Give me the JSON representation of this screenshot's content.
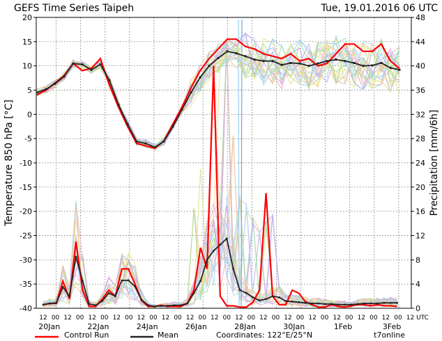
{
  "header": {
    "title": "GEFS Time Series Taipeh",
    "timestamp": "Tue, 19.01.2016 06 UTC"
  },
  "footer": {
    "control_label": "Control Run",
    "mean_label": "Mean",
    "coordinates": "Coordinates: 122°E/25°N",
    "brand": "t7online"
  },
  "colors": {
    "control": "#ff0000",
    "mean": "#222222",
    "members": [
      "#9ad0f0",
      "#f0e08a",
      "#a8e0a0",
      "#c8a8e8",
      "#f4c29a",
      "#b8d8f8",
      "#e8b0d0",
      "#d0e888"
    ]
  },
  "chart_data": {
    "type": "line",
    "title": "GEFS Time Series Taipeh",
    "run": "Tue, 19.01.2016 06 UTC",
    "x_unit": "hours since 19.01.2016 06 UTC, 6-hourly",
    "hour_labels": [
      "12",
      "00",
      "12",
      "00",
      "12",
      "00",
      "12",
      "00",
      "12",
      "00",
      "12",
      "00",
      "12",
      "00",
      "12",
      "00",
      "12",
      "00",
      "12",
      "00",
      "12",
      "00",
      "12",
      "00",
      "12",
      "00",
      "12",
      "00",
      "12",
      "00",
      "12",
      "UTC"
    ],
    "date_labels": [
      "20Jan",
      "22Jan",
      "24Jan",
      "26Jan",
      "28Jan",
      "30Jan",
      "1Feb",
      "3Feb"
    ],
    "left_axis": {
      "label": "Temperature 850 hPa [°C]",
      "range": [
        -40,
        20
      ],
      "ticks": [
        "20",
        "15",
        "10",
        "5",
        "0",
        "-5",
        "-10",
        "-15",
        "-20",
        "-25",
        "-30",
        "-35",
        "-40"
      ]
    },
    "right_axis": {
      "label": "Precipitation [mm/6h]",
      "range": [
        0,
        48
      ],
      "ticks": [
        "48",
        "44",
        "40",
        "36",
        "32",
        "28",
        "24",
        "20",
        "16",
        "12",
        "8",
        "4",
        "0"
      ]
    },
    "temperature": {
      "control": [
        4,
        5,
        6.5,
        8,
        10.5,
        9,
        9.5,
        11.5,
        6,
        1.5,
        -2.5,
        -6,
        -6.5,
        -7,
        -5.5,
        -2,
        1.5,
        5.5,
        9,
        11.5,
        13.5,
        15.5,
        15.5,
        14,
        13.5,
        12.5,
        12,
        11.5,
        12.5,
        11,
        11.5,
        10,
        10.5,
        12.5,
        14.5,
        14.5,
        13,
        13,
        14.5,
        11,
        9.5
      ],
      "mean": [
        4.5,
        5.2,
        6.3,
        7.8,
        10.5,
        10.3,
        9.2,
        10.3,
        7,
        2,
        -2,
        -5.6,
        -6,
        -6.8,
        -5.6,
        -2.5,
        1,
        4.5,
        7.6,
        10,
        11.6,
        13,
        12.6,
        12,
        11.3,
        11,
        11,
        10.2,
        10.6,
        10.5,
        10,
        10.5,
        11,
        11.3,
        11,
        10.6,
        10,
        10.1,
        10.6,
        9.6,
        9.2
      ],
      "members_count": 20
    },
    "precipitation": {
      "control": [
        0.6,
        0.8,
        0.8,
        4.5,
        1.5,
        11,
        3,
        0.3,
        0.3,
        1.5,
        3,
        2,
        6.5,
        6.5,
        4,
        1.3,
        0.3,
        0.3,
        0.5,
        0.3,
        0.3,
        0.3,
        0.8,
        3,
        10,
        6.5,
        40,
        2,
        0.4,
        0.4,
        0.2,
        0.2,
        1,
        3,
        19,
        2,
        0.6,
        0.6,
        3,
        2.5,
        1.1,
        0.6,
        0.2,
        0.2,
        0.6,
        0.3,
        0.2,
        0.4,
        0.6,
        0.6,
        0.4,
        0.6,
        0.4,
        0.4,
        0.3
      ],
      "mean": [
        0.6,
        0.8,
        0.9,
        3.5,
        2,
        8.5,
        4.5,
        0.7,
        0.5,
        1.2,
        2.5,
        2,
        4.6,
        4.6,
        3.6,
        1.4,
        0.5,
        0.3,
        0.4,
        0.4,
        0.5,
        0.5,
        0.8,
        2.5,
        4.5,
        8,
        9.5,
        10.5,
        11.5,
        6.5,
        3,
        2.5,
        1.8,
        1.3,
        1.5,
        2,
        1.8,
        1.2,
        1.1,
        1,
        0.9,
        0.8,
        0.8,
        0.7,
        0.7,
        0.6,
        0.6,
        0.6,
        0.7,
        0.8,
        0.8,
        0.8,
        0.9,
        0.9,
        0.9
      ]
    }
  }
}
